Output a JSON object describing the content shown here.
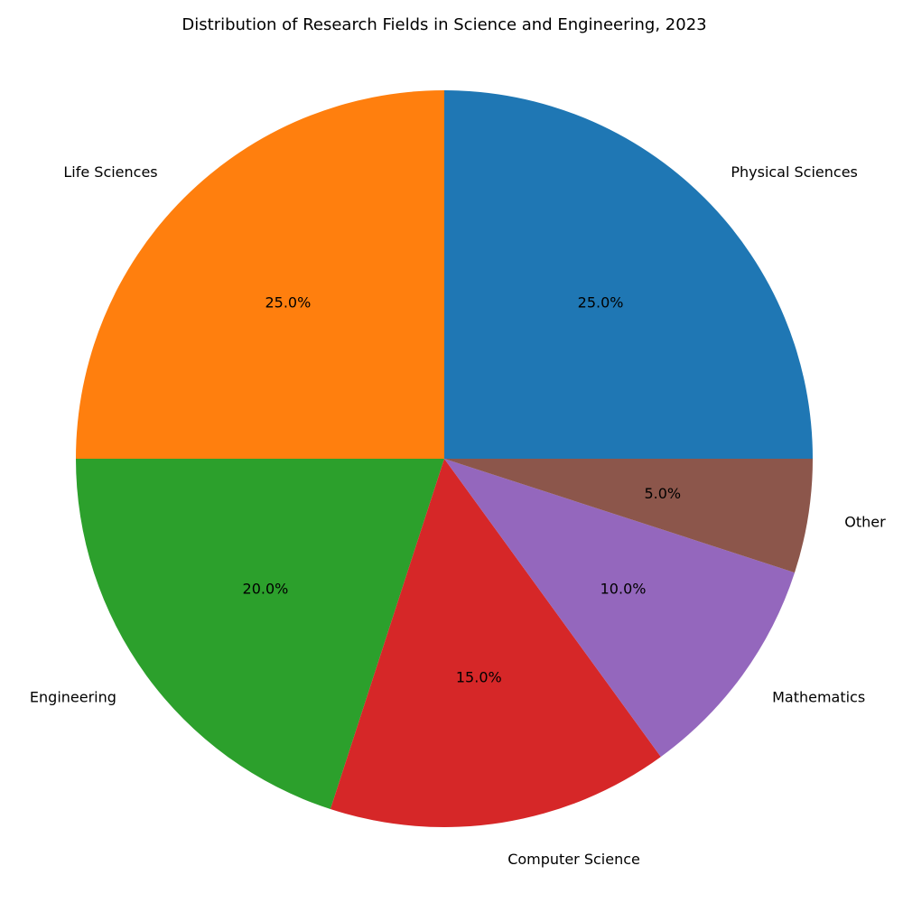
{
  "chart_data": {
    "type": "pie",
    "title": "Distribution of Research Fields in Science and Engineering, 2023",
    "categories": [
      "Physical Sciences",
      "Life Sciences",
      "Engineering",
      "Computer Science",
      "Mathematics",
      "Other"
    ],
    "values": [
      25.0,
      25.0,
      20.0,
      15.0,
      10.0,
      5.0
    ],
    "percent_labels": [
      "25.0%",
      "25.0%",
      "20.0%",
      "15.0%",
      "10.0%",
      "5.0%"
    ],
    "colors": [
      "#1f77b4",
      "#ff7f0e",
      "#2ca02c",
      "#d62728",
      "#9467bd",
      "#8c564b"
    ],
    "start_angle_deg": 0,
    "direction": "counterclockwise",
    "legend": "none"
  }
}
